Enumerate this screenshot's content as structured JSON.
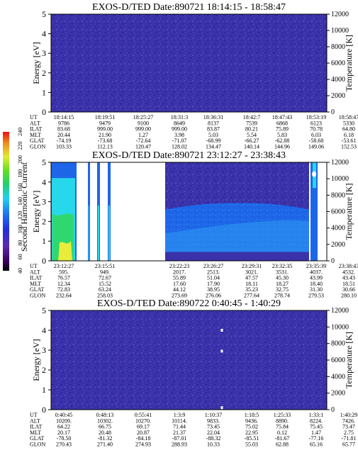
{
  "panels": [
    {
      "title": "EXOS-D/TED   Date:890721   18:14:15 - 18:58:47",
      "rows": [
        {
          "label": "UT",
          "values": [
            "18:14:15",
            "18:19:51",
            "18:25:27",
            "18:31:3",
            "18:36:31",
            "18:42:7",
            "18:47:43",
            "18:53:19",
            "18:58:47"
          ]
        },
        {
          "label": "ALT",
          "values": [
            "9786",
            "9479",
            "9100",
            "8649",
            "8137",
            "7539",
            "6868",
            "6123",
            "5330"
          ]
        },
        {
          "label": "ILAT",
          "values": [
            "83.68",
            "999.00",
            "999.00",
            "999.00",
            "83.87",
            "80.21",
            "75.89",
            "70.78",
            "64.80"
          ]
        },
        {
          "label": "MLT",
          "values": [
            "20.44",
            "21.90",
            "1.27",
            "3.98",
            "5.03",
            "5.54",
            "5.83",
            "6.03",
            "6.18"
          ]
        },
        {
          "label": "GLAT",
          "values": [
            "-74.19",
            "-73.68",
            "-72.64",
            "-71.07",
            "-68.99",
            "-66.27",
            "-62.88",
            "-58.68",
            "-53.61"
          ]
        },
        {
          "label": "GLON",
          "values": [
            "103.33",
            "112.13",
            "120.47",
            "128.02",
            "134.47",
            "140.14",
            "144.96",
            "149.06",
            "152.53"
          ]
        }
      ]
    },
    {
      "title": "EXOS-D/TED   Date:890721   23:12:27 - 23:38:43",
      "rows": [
        {
          "label": "UT",
          "values": [
            "23:12:27",
            "23:15:51",
            "",
            "23:22:23",
            "23:26:27",
            "23:29:31",
            "23:32:35",
            "23:35:39",
            "23:38:43"
          ]
        },
        {
          "label": "ALT",
          "values": [
            "595.",
            "949.",
            "",
            "2017.",
            "2513.",
            "3021.",
            "3531.",
            "4037.",
            "4532."
          ]
        },
        {
          "label": "ILAT",
          "values": [
            "76.57",
            "72.67",
            "",
            "55.89",
            "51.04",
            "47.57",
            "45.30",
            "43.99",
            "43.43"
          ]
        },
        {
          "label": "MLT",
          "values": [
            "12.34",
            "15.52",
            "",
            "17.60",
            "17.90",
            "18.11",
            "18.27",
            "18.40",
            "18.51"
          ]
        },
        {
          "label": "GLAT",
          "values": [
            "72.83",
            "63.24",
            "",
            "44.12",
            "38.95",
            "35.23",
            "32.75",
            "31.30",
            "30.66"
          ]
        },
        {
          "label": "GLON",
          "values": [
            "232.64",
            "258.03",
            "",
            "273.69",
            "276.06",
            "277.64",
            "278.74",
            "279.53",
            "280.10"
          ]
        }
      ]
    },
    {
      "title": "EXOS-D/TED   Date:890722   0:40:45 - 1:40:29",
      "rows": [
        {
          "label": "UT",
          "values": [
            "0:40:45",
            "0:48:13",
            "0:55:41",
            "1:3:9",
            "1:10:37",
            "1:18:5",
            "1:25:33",
            "1:33:1",
            "1:40:29"
          ]
        },
        {
          "label": "ALT",
          "values": [
            "10209.",
            "10302.",
            "10270.",
            "10114.",
            "9833.",
            "9436.",
            "8890.",
            "8224.",
            "7426."
          ]
        },
        {
          "label": "ILAT",
          "values": [
            "64.22",
            "66.75",
            "69.17",
            "71.44",
            "73.45",
            "75.02",
            "75.84",
            "75.45",
            "73.47"
          ]
        },
        {
          "label": "MLT",
          "values": [
            "20.17",
            "20.48",
            "20.87",
            "21.37",
            "22.04",
            "22.95",
            "0.12",
            "1.47",
            "2.75"
          ]
        },
        {
          "label": "GLAT",
          "values": [
            "-78.50",
            "-81.32",
            "-84.18",
            "-87.01",
            "-88.32",
            "-85.51",
            "-81.67",
            "-77.16",
            "-71.81"
          ]
        },
        {
          "label": "GLON",
          "values": [
            "270.43",
            "271.40",
            "274.93",
            "288.93",
            "10.33",
            "55.03",
            "62.88",
            "65.16",
            "65.77"
          ]
        }
      ]
    }
  ],
  "axes": {
    "ylabel_left": "Energy [eV]",
    "ylabel_right": "Temperature [K]",
    "yticks_left": [
      "0",
      "1",
      "2",
      "3",
      "4",
      "5"
    ],
    "yticks_right": [
      "0",
      "2000",
      "4000",
      "6000",
      "8000",
      "10000",
      "12000"
    ]
  },
  "colorbar": {
    "label": "Second Harmonic Current",
    "ticks": [
      "40",
      "60",
      "80",
      "100",
      "120",
      "140",
      "160",
      "180",
      "200",
      "220",
      "240"
    ]
  },
  "colors": {
    "background": "#3a32a8",
    "noise_dark": "#2a23a0",
    "noise_light": "#5647c2",
    "blue": "#1e66e8",
    "cyan": "#27d7ec",
    "green": "#2fd86e",
    "yellow": "#e9ec3a"
  },
  "chart_data": [
    {
      "type": "heatmap",
      "title": "EXOS-D/TED Date:890721 18:14:15 - 18:58:47",
      "ylabel": "Energy [eV]",
      "ylabel_right": "Temperature [K]",
      "ylim": [
        0,
        5
      ],
      "ylim_right": [
        0,
        12000
      ],
      "x": [
        "18:14:15",
        "18:19:51",
        "18:25:27",
        "18:31:3",
        "18:36:31",
        "18:42:7",
        "18:47:43",
        "18:53:19",
        "18:58:47"
      ],
      "colorbar_label": "Second Harmonic Current",
      "colorbar_range": [
        40,
        240
      ],
      "level": 60
    },
    {
      "type": "heatmap",
      "title": "EXOS-D/TED Date:890721 23:12:27 - 23:38:43",
      "ylabel": "Energy [eV]",
      "ylabel_right": "Temperature [K]",
      "ylim": [
        0,
        5
      ],
      "ylim_right": [
        0,
        12000
      ],
      "x": [
        "23:12:27",
        "23:15:51",
        "23:22:23",
        "23:26:27",
        "23:29:31",
        "23:32:35",
        "23:35:39",
        "23:38:43"
      ],
      "colorbar_label": "Second Harmonic Current",
      "colorbar_range": [
        40,
        240
      ],
      "bands": [
        {
          "level": 140,
          "y_range": [
            0,
            5
          ]
        },
        {
          "level": 160,
          "y_range": [
            0,
            2.6
          ]
        },
        {
          "level": 200,
          "y_range": [
            0,
            1.2
          ]
        }
      ]
    },
    {
      "type": "heatmap",
      "title": "EXOS-D/TED Date:890722 0:40:45 - 1:40:29",
      "ylabel": "Energy [eV]",
      "ylabel_right": "Temperature [K]",
      "ylim": [
        0,
        5
      ],
      "ylim_right": [
        0,
        12000
      ],
      "x": [
        "0:40:45",
        "0:48:13",
        "0:55:41",
        "1:3:9",
        "1:10:37",
        "1:18:5",
        "1:25:33",
        "1:33:1",
        "1:40:29"
      ],
      "colorbar_label": "Second Harmonic Current",
      "colorbar_range": [
        40,
        240
      ],
      "level": 60
    }
  ]
}
